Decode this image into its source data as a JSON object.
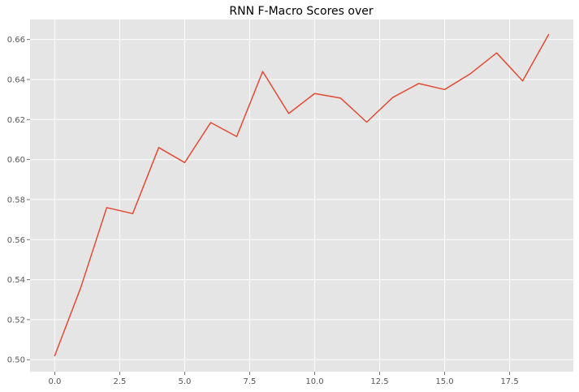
{
  "chart_data": {
    "type": "line",
    "title": "RNN F-Macro Scores over",
    "xlabel": "",
    "ylabel": "",
    "xlim": [
      -0.95,
      19.95
    ],
    "ylim": [
      0.494,
      0.67
    ],
    "xticks": [
      0.0,
      2.5,
      5.0,
      7.5,
      10.0,
      12.5,
      15.0,
      17.5
    ],
    "xtick_labels": [
      "0.0",
      "2.5",
      "5.0",
      "7.5",
      "10.0",
      "12.5",
      "15.0",
      "17.5"
    ],
    "yticks": [
      0.5,
      0.52,
      0.54,
      0.56,
      0.58,
      0.6,
      0.62,
      0.64,
      0.66
    ],
    "ytick_labels": [
      "0.50",
      "0.52",
      "0.54",
      "0.56",
      "0.58",
      "0.60",
      "0.62",
      "0.64",
      "0.66"
    ],
    "grid": true,
    "series": [
      {
        "color": "#e24a33",
        "x": [
          0,
          1,
          2,
          3,
          4,
          5,
          6,
          7,
          8,
          9,
          10,
          11,
          12,
          13,
          14,
          15,
          16,
          17,
          18,
          19
        ],
        "values": [
          0.502,
          0.536,
          0.576,
          0.573,
          0.606,
          0.5985,
          0.6185,
          0.6115,
          0.644,
          0.623,
          0.633,
          0.6307,
          0.6187,
          0.631,
          0.638,
          0.635,
          0.643,
          0.6533,
          0.6393,
          0.6625
        ]
      }
    ],
    "style": {
      "background": "#e5e5e5",
      "grid_color": "#ffffff",
      "tick_color": "#555555"
    }
  }
}
